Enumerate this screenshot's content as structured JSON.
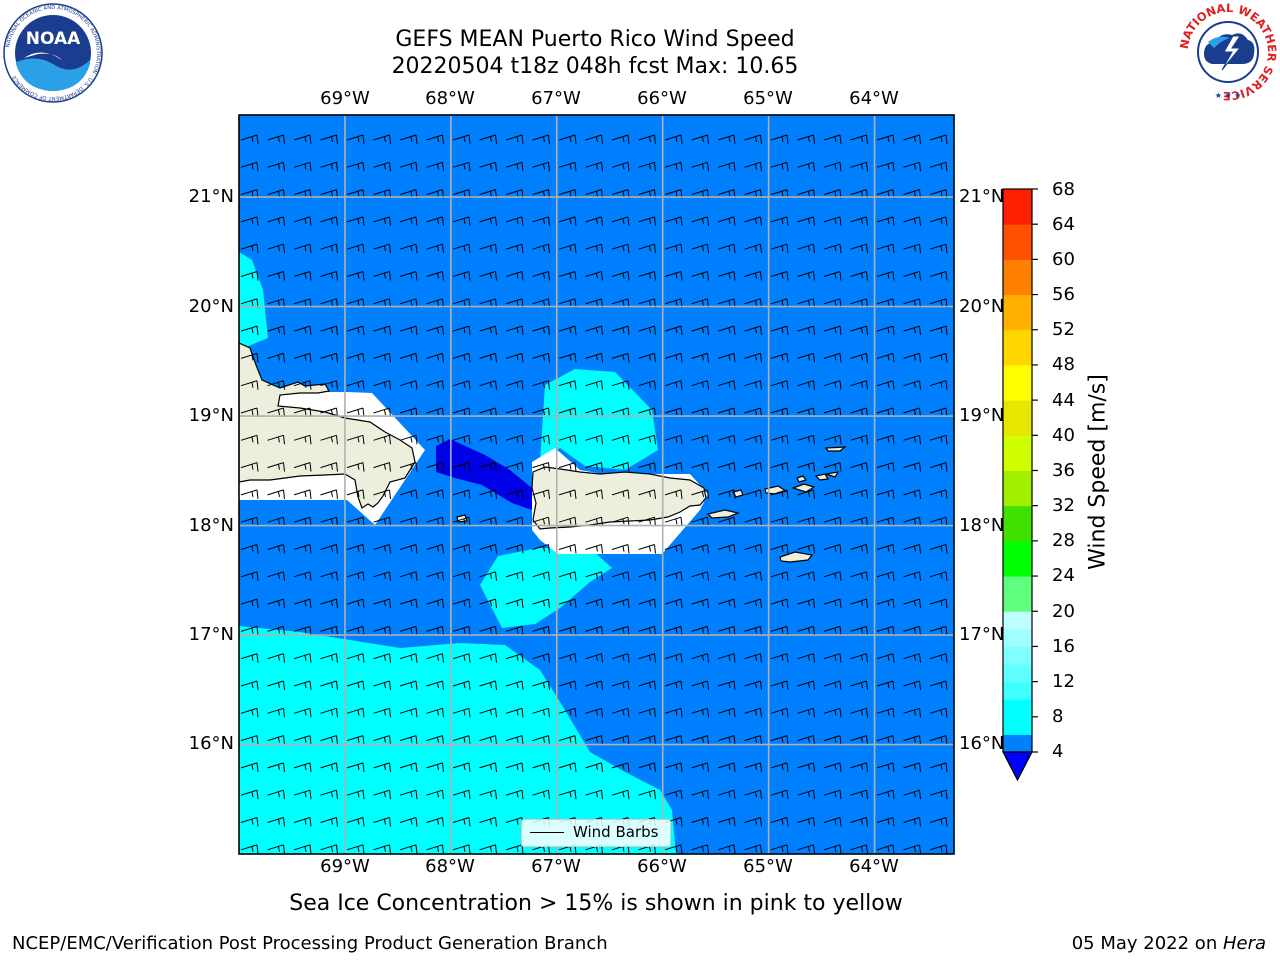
{
  "header": {
    "title_line1": "GEFS MEAN Puerto Rico Wind Speed",
    "title_line2": "20220504 t18z 048h fcst   Max: 10.65"
  },
  "logos": {
    "left": "noaa-logo",
    "left_text": "NOAA",
    "left_ring_text": "NATIONAL OCEANIC AND ATMOSPHERIC ADMINISTRATION · U.S. DEPARTMENT OF COMMERCE",
    "right": "nws-logo",
    "right_ring_text": "NATIONAL WEATHER SERVICE"
  },
  "map": {
    "lon_labels": [
      "69°W",
      "68°W",
      "67°W",
      "66°W",
      "65°W",
      "64°W"
    ],
    "lat_labels": [
      "21°N",
      "20°N",
      "19°N",
      "18°N",
      "17°N",
      "16°N"
    ],
    "lon_values": [
      -69,
      -68,
      -67,
      -66,
      -65,
      -64
    ],
    "lat_values": [
      21,
      20,
      19,
      18,
      17,
      16
    ],
    "extent": {
      "lon_min": -70,
      "lon_max": -63.25,
      "lat_min": 15,
      "lat_max": 21.75
    },
    "colors": {
      "ocean_4_8": "#0080ff",
      "ocean_8_12": "#00ffff",
      "ocean_below_4": "#0000e6",
      "land": "#eeeedc",
      "gridline": "#b0b0b0"
    },
    "legend_label": "Wind Barbs",
    "wind_barbs": "approx. easterly 15-20 kt"
  },
  "colorbar": {
    "label": "Wind Speed [m/s]",
    "ticks": [
      "68",
      "64",
      "60",
      "56",
      "52",
      "48",
      "44",
      "40",
      "36",
      "32",
      "28",
      "24",
      "20",
      "16",
      "12",
      "8",
      "4"
    ],
    "levels": [
      4,
      6,
      8,
      10,
      12,
      14,
      16,
      18,
      20,
      24,
      28,
      32,
      36,
      40,
      44,
      48,
      52,
      56,
      60,
      64,
      68
    ],
    "colors": [
      "#0080ff",
      "#00ffff",
      "#00ffff",
      "#40ffff",
      "#60ffff",
      "#80ffff",
      "#a0ffff",
      "#c0ffff",
      "#60ff80",
      "#00ff00",
      "#40e000",
      "#a0f000",
      "#d0ff00",
      "#e6e600",
      "#ffff00",
      "#ffd700",
      "#ffb000",
      "#ff8000",
      "#ff5000",
      "#ff2000",
      "#ff0000"
    ],
    "under_color": "#0000ff"
  },
  "notes": {
    "sea_ice": "Sea Ice Concentration > 15% is shown in pink to yellow"
  },
  "footer": {
    "left": "NCEP/EMC/Verification Post Processing Product Generation Branch",
    "right_date": "05 May 2022 on ",
    "right_machine": "Hera"
  }
}
